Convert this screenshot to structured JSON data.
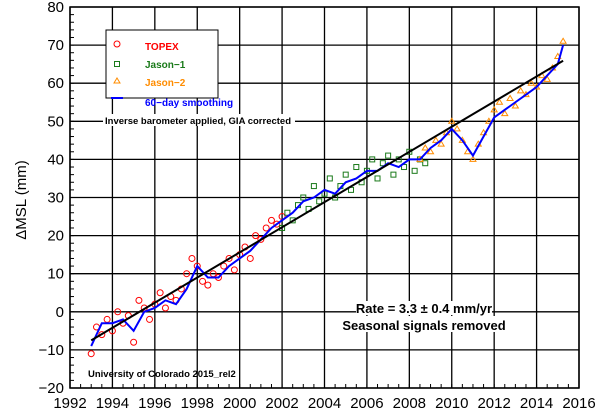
{
  "chart_data": {
    "type": "scatter",
    "title": "",
    "xlabel": "",
    "ylabel": "ΔMSL (mm)",
    "xlim": [
      1992,
      2016
    ],
    "ylim": [
      -20,
      80
    ],
    "grid": true,
    "legend_placement": "top-left",
    "x_ticks": [
      "1992",
      "1994",
      "1996",
      "1998",
      "2000",
      "2002",
      "2004",
      "2006",
      "2008",
      "2010",
      "2012",
      "2014",
      "2016"
    ],
    "y_ticks": [
      "−20",
      "−10",
      "0",
      "10",
      "20",
      "30",
      "40",
      "50",
      "60",
      "70",
      "80"
    ],
    "legend": [
      {
        "label": "TOPEX",
        "marker": "circle",
        "color": "#ff0000"
      },
      {
        "label": "Jason−1",
        "marker": "square",
        "color": "#1a7a1a"
      },
      {
        "label": "Jason−2",
        "marker": "triangle",
        "color": "#ff8c00"
      },
      {
        "label": "60−day smoothing",
        "marker": "line",
        "color": "#0000ff"
      }
    ],
    "annotations": {
      "inverse_barometer": "Inverse barometer applied, GIA corrected",
      "rate": "Rate = 3.3 ± 0.4 mm/yr",
      "seasonal": "Seasonal signals removed",
      "credit": "University of Colorado 2015_rel2"
    },
    "trend": {
      "rate_mm_per_yr": 3.3,
      "x": [
        1993,
        2015.25
      ],
      "y": [
        -7.5,
        65.9
      ]
    },
    "series": [
      {
        "name": "TOPEX",
        "color": "#ff0000",
        "points": [
          [
            1993.0,
            -11
          ],
          [
            1993.25,
            -4
          ],
          [
            1993.5,
            -6
          ],
          [
            1993.75,
            -2
          ],
          [
            1994.0,
            -5
          ],
          [
            1994.25,
            0
          ],
          [
            1994.5,
            -3
          ],
          [
            1994.75,
            -1
          ],
          [
            1995.0,
            -8
          ],
          [
            1995.25,
            3
          ],
          [
            1995.5,
            1
          ],
          [
            1995.75,
            -2
          ],
          [
            1996.0,
            2
          ],
          [
            1996.25,
            5
          ],
          [
            1996.5,
            1
          ],
          [
            1996.75,
            4
          ],
          [
            1997.0,
            3
          ],
          [
            1997.25,
            6
          ],
          [
            1997.5,
            10
          ],
          [
            1997.75,
            14
          ],
          [
            1998.0,
            12
          ],
          [
            1998.25,
            8
          ],
          [
            1998.5,
            7
          ],
          [
            1998.75,
            10
          ],
          [
            1999.0,
            9
          ],
          [
            1999.25,
            12
          ],
          [
            1999.5,
            14
          ],
          [
            1999.75,
            11
          ],
          [
            2000.0,
            15
          ],
          [
            2000.25,
            17
          ],
          [
            2000.5,
            14
          ],
          [
            2000.75,
            20
          ],
          [
            2001.0,
            19
          ],
          [
            2001.25,
            22
          ],
          [
            2001.5,
            24
          ],
          [
            2001.75,
            23
          ],
          [
            2002.0,
            25
          ]
        ]
      },
      {
        "name": "Jason−1",
        "color": "#1a7a1a",
        "points": [
          [
            2002.0,
            22
          ],
          [
            2002.25,
            26
          ],
          [
            2002.5,
            24
          ],
          [
            2002.75,
            28
          ],
          [
            2003.0,
            30
          ],
          [
            2003.25,
            27
          ],
          [
            2003.5,
            33
          ],
          [
            2003.75,
            29
          ],
          [
            2004.0,
            31
          ],
          [
            2004.25,
            35
          ],
          [
            2004.5,
            30
          ],
          [
            2004.75,
            33
          ],
          [
            2005.0,
            36
          ],
          [
            2005.25,
            32
          ],
          [
            2005.5,
            38
          ],
          [
            2005.75,
            34
          ],
          [
            2006.0,
            37
          ],
          [
            2006.25,
            40
          ],
          [
            2006.5,
            35
          ],
          [
            2006.75,
            39
          ],
          [
            2007.0,
            41
          ],
          [
            2007.25,
            36
          ],
          [
            2007.5,
            40
          ],
          [
            2007.75,
            38
          ],
          [
            2008.0,
            42
          ],
          [
            2008.25,
            37
          ],
          [
            2008.5,
            40
          ],
          [
            2008.75,
            39
          ]
        ]
      },
      {
        "name": "Jason−2",
        "color": "#ff8c00",
        "points": [
          [
            2008.5,
            40
          ],
          [
            2008.75,
            43
          ],
          [
            2009.0,
            42
          ],
          [
            2009.25,
            45
          ],
          [
            2009.5,
            44
          ],
          [
            2009.75,
            47
          ],
          [
            2010.0,
            50
          ],
          [
            2010.25,
            48
          ],
          [
            2010.5,
            45
          ],
          [
            2010.75,
            42
          ],
          [
            2011.0,
            40
          ],
          [
            2011.25,
            44
          ],
          [
            2011.5,
            47
          ],
          [
            2011.75,
            50
          ],
          [
            2012.0,
            53
          ],
          [
            2012.25,
            55
          ],
          [
            2012.5,
            52
          ],
          [
            2012.75,
            56
          ],
          [
            2013.0,
            54
          ],
          [
            2013.25,
            58
          ],
          [
            2013.5,
            57
          ],
          [
            2013.75,
            60
          ],
          [
            2014.0,
            59
          ],
          [
            2014.25,
            62
          ],
          [
            2014.5,
            61
          ],
          [
            2014.75,
            64
          ],
          [
            2015.0,
            67
          ],
          [
            2015.25,
            71
          ]
        ]
      },
      {
        "name": "60−day smoothing",
        "color": "#0000ff",
        "points": [
          [
            1993,
            -9
          ],
          [
            1993.5,
            -3
          ],
          [
            1994,
            -3
          ],
          [
            1994.5,
            -2
          ],
          [
            1995,
            -5
          ],
          [
            1995.5,
            0
          ],
          [
            1996,
            1
          ],
          [
            1996.5,
            3
          ],
          [
            1997,
            2
          ],
          [
            1997.5,
            6
          ],
          [
            1998,
            12
          ],
          [
            1998.5,
            9
          ],
          [
            1999,
            9
          ],
          [
            1999.5,
            12
          ],
          [
            2000,
            14
          ],
          [
            2000.5,
            16
          ],
          [
            2001,
            19
          ],
          [
            2001.5,
            22
          ],
          [
            2002,
            24
          ],
          [
            2002.5,
            26
          ],
          [
            2003,
            29
          ],
          [
            2003.5,
            30
          ],
          [
            2004,
            32
          ],
          [
            2004.5,
            31
          ],
          [
            2005,
            34
          ],
          [
            2005.5,
            35
          ],
          [
            2006,
            37
          ],
          [
            2006.5,
            37
          ],
          [
            2007,
            39
          ],
          [
            2007.5,
            38
          ],
          [
            2008,
            40
          ],
          [
            2008.5,
            40
          ],
          [
            2009,
            43
          ],
          [
            2009.5,
            45
          ],
          [
            2010,
            48
          ],
          [
            2010.5,
            45
          ],
          [
            2011,
            41
          ],
          [
            2011.5,
            46
          ],
          [
            2012,
            51
          ],
          [
            2012.5,
            53
          ],
          [
            2013,
            55
          ],
          [
            2013.5,
            57
          ],
          [
            2014,
            59
          ],
          [
            2014.5,
            62
          ],
          [
            2015,
            65
          ],
          [
            2015.25,
            70
          ]
        ]
      }
    ]
  }
}
